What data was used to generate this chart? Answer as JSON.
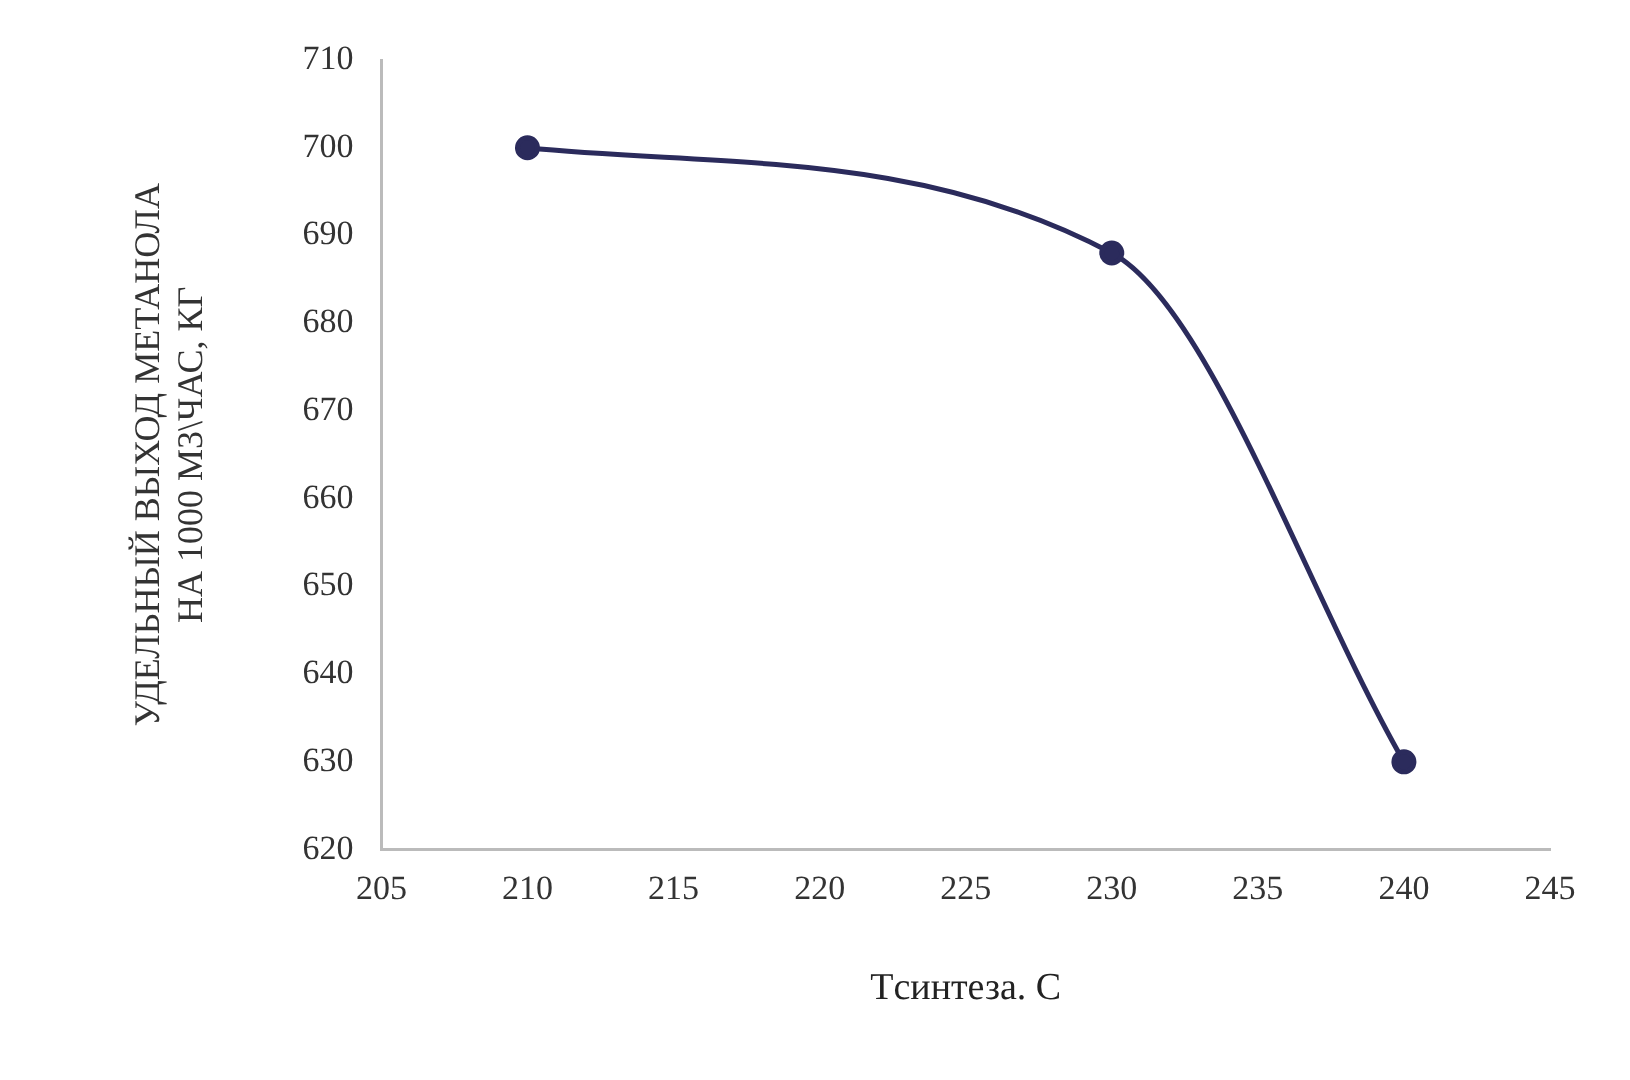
{
  "chart_data": {
    "type": "line",
    "xlabel": "Tсинтеза. C",
    "ylabel": "УДЕЛЬНЫЙ ВЫХОД МЕТАНОЛА\nНА 1000 М3\\ЧАС, КГ",
    "x": [
      210,
      230,
      240
    ],
    "series": [
      {
        "color": "#2b2b5c",
        "values": [
          700,
          688,
          630
        ]
      }
    ],
    "xlim": [
      205,
      245
    ],
    "xticks": [
      205,
      210,
      215,
      220,
      225,
      230,
      235,
      240,
      245
    ],
    "ylim": [
      620,
      710
    ],
    "yticks": [
      620,
      630,
      640,
      650,
      660,
      670,
      680,
      690,
      700,
      710
    ],
    "grid": false,
    "legend": false,
    "marker": "circle",
    "line_style": "solid"
  }
}
